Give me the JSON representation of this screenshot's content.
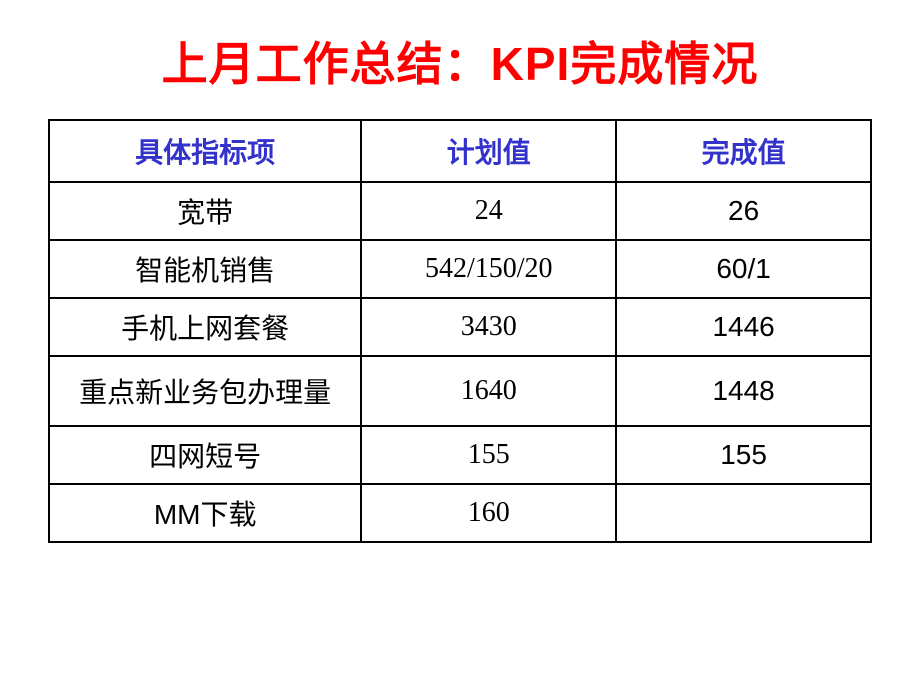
{
  "title": "上月工作总结：KPI完成情况",
  "table": {
    "columns": [
      "具体指标项",
      "计划值",
      "完成值"
    ],
    "column_widths": [
      "38%",
      "31%",
      "31%"
    ],
    "header_color": "#3333cc",
    "header_fontsize": 28,
    "cell_fontsize": 28,
    "border_color": "#000000",
    "rows": [
      {
        "name": "宽带",
        "plan": "24",
        "actual": "26"
      },
      {
        "name": "智能机销售",
        "plan": "542/150/20",
        "actual": "60/1"
      },
      {
        "name": "手机上网套餐",
        "plan": "3430",
        "actual": "1446"
      },
      {
        "name": "重点新业务包办理量",
        "plan": "1640",
        "actual": "1448",
        "tall": true
      },
      {
        "name": "四网短号",
        "plan": "155",
        "actual": "155"
      },
      {
        "name": "MM下载",
        "plan": "160",
        "actual": "",
        "plan_arial": true
      }
    ]
  },
  "title_color": "#ff0000",
  "title_fontsize": 46,
  "background_color": "#ffffff"
}
